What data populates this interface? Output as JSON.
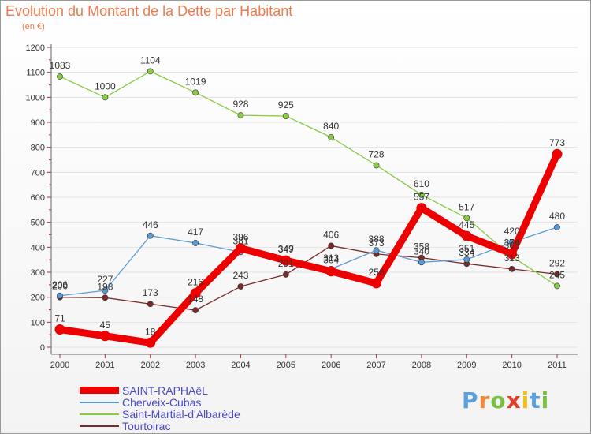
{
  "chart_data": {
    "type": "line",
    "title": "Evolution du Montant de la Dette par Habitant",
    "subtitle": "(en €)",
    "x": [
      "2000",
      "2001",
      "2002",
      "2003",
      "2004",
      "2005",
      "2006",
      "2007",
      "2008",
      "2009",
      "2010",
      "2011"
    ],
    "ylim": [
      0,
      1200
    ],
    "yticks": [
      0,
      100,
      200,
      300,
      400,
      500,
      600,
      700,
      800,
      900,
      1000,
      1100,
      1200
    ],
    "grid": true,
    "legend_position": "bottom-left",
    "series": [
      {
        "name": "SAINT-RAPHAëL",
        "color": "#ee0000",
        "values": [
          71,
          45,
          18,
          216,
          396,
          347,
          304,
          256,
          557,
          445,
          374,
          773
        ]
      },
      {
        "name": "Cherveix-Cubas",
        "color": "#5b9bd5",
        "values": [
          206,
          227,
          446,
          417,
          381,
          349,
          313,
          388,
          340,
          351,
          420,
          480
        ]
      },
      {
        "name": "Saint-Martial-d'Albarède",
        "color": "#88cc44",
        "values": [
          1083,
          1000,
          1104,
          1019,
          928,
          925,
          840,
          728,
          610,
          517,
          363,
          245
        ]
      },
      {
        "name": "Tourtoirac",
        "color": "#7a2a2a",
        "values": [
          200,
          198,
          173,
          148,
          243,
          291,
          406,
          373,
          358,
          334,
          313,
          292
        ]
      }
    ]
  },
  "logo": {
    "letters": [
      "P",
      "r",
      "o",
      "x",
      "i",
      "t",
      "i"
    ],
    "colors": [
      "#5aa0dc",
      "#f08a3a",
      "#78c040",
      "#e0402a",
      "#f0c020",
      "#5aa0dc",
      "#78c040"
    ]
  }
}
